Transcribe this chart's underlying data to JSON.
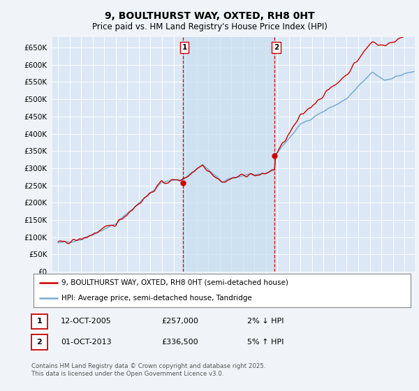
{
  "title": "9, BOULTHURST WAY, OXTED, RH8 0HT",
  "subtitle": "Price paid vs. HM Land Registry's House Price Index (HPI)",
  "legend_line1": "9, BOULTHURST WAY, OXTED, RH8 0HT (semi-detached house)",
  "legend_line2": "HPI: Average price, semi-detached house, Tandridge",
  "footer": "Contains HM Land Registry data © Crown copyright and database right 2025.\nThis data is licensed under the Open Government Licence v3.0.",
  "table_row1": [
    "1",
    "12-OCT-2005",
    "£257,000",
    "2% ↓ HPI"
  ],
  "table_row2": [
    "2",
    "01-OCT-2013",
    "£336,500",
    "5% ↑ HPI"
  ],
  "red_color": "#cc0000",
  "blue_color": "#7aaacc",
  "dashed_red": "#cc0000",
  "background_color": "#f0f4f8",
  "plot_bg": "#dce8f5",
  "shade_color": "#c8dff0",
  "grid_color": "#ffffff",
  "ylim": [
    0,
    680000
  ],
  "yticks": [
    0,
    50000,
    100000,
    150000,
    200000,
    250000,
    300000,
    350000,
    400000,
    450000,
    500000,
    550000,
    600000,
    650000
  ],
  "xlim_start": 1994.5,
  "xlim_end": 2025.9,
  "vline1_x": 2005.79,
  "vline2_x": 2013.75,
  "seed": 42
}
